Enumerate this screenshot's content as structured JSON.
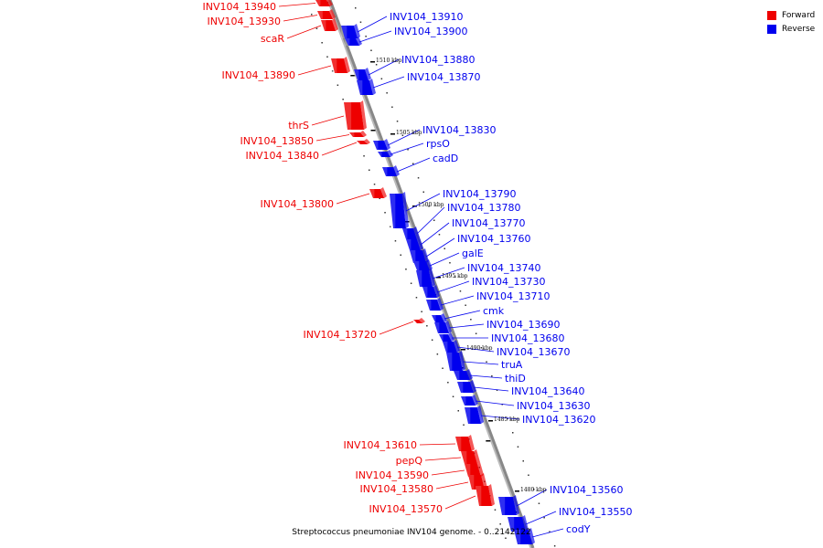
{
  "title": "Streptococcus pneumoniae INV104 genome. - 0..2142122",
  "legend": [
    {
      "label": "Forward",
      "color": "#ee0000"
    },
    {
      "label": "Reverse",
      "color": "#0000ee"
    }
  ],
  "colors": {
    "forward": "#ee0000",
    "reverse": "#0000ee",
    "axis": "#888888"
  },
  "kbp_markers": [
    "1510 kbp",
    "1505 kbp",
    "1500 kbp",
    "1495 kbp",
    "1490 kbp",
    "1485 kbp",
    "1480 kbp"
  ],
  "forward_genes": [
    "INV104_13940",
    "INV104_13930",
    "scaR",
    "INV104_13890",
    "thrS",
    "INV104_13850",
    "INV104_13840",
    "INV104_13800",
    "INV104_13720",
    "INV104_13610",
    "pepQ",
    "INV104_13590",
    "INV104_13580",
    "INV104_13570"
  ],
  "reverse_genes": [
    "INV104_13910",
    "INV104_13900",
    "INV104_13880",
    "INV104_13870",
    "INV104_13830",
    "rpsO",
    "cadD",
    "INV104_13790",
    "INV104_13780",
    "INV104_13770",
    "INV104_13760",
    "galE",
    "INV104_13740",
    "INV104_13730",
    "INV104_13710",
    "cmk",
    "INV104_13690",
    "INV104_13680",
    "INV104_13670",
    "truA",
    "thiD",
    "INV104_13640",
    "INV104_13630",
    "INV104_13620",
    "INV104_13560",
    "INV104_13550",
    "codY"
  ]
}
